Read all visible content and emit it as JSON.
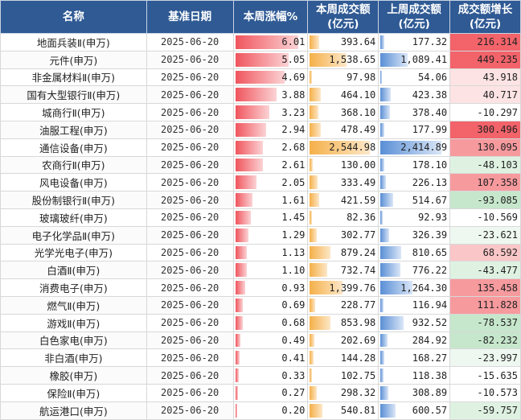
{
  "headers": [
    "名称",
    "基准日期",
    "本周涨幅%",
    "本周成交额\n(亿元)",
    "上周成交额\n(亿元)",
    "成交额增长\n(亿元)"
  ],
  "max": {
    "change": 6.01,
    "this_week": 2544.98,
    "last_week": 2414.89
  },
  "rows": [
    {
      "name": "地面兵装Ⅱ(申万)",
      "date": "2025-06-20",
      "change": "6.01",
      "this_week": "393.64",
      "last_week": "177.32",
      "growth": "216.314"
    },
    {
      "name": "元件(申万)",
      "date": "2025-06-20",
      "change": "5.05",
      "this_week": "1,538.65",
      "last_week": "1,089.41",
      "growth": "449.235"
    },
    {
      "name": "非金属材料Ⅱ(申万)",
      "date": "2025-06-20",
      "change": "4.69",
      "this_week": "97.98",
      "last_week": "54.06",
      "growth": "43.918"
    },
    {
      "name": "国有大型银行Ⅱ(申万)",
      "date": "2025-06-20",
      "change": "3.88",
      "this_week": "464.10",
      "last_week": "423.38",
      "growth": "40.717"
    },
    {
      "name": "城商行Ⅱ(申万)",
      "date": "2025-06-20",
      "change": "3.23",
      "this_week": "368.10",
      "last_week": "378.40",
      "growth": "-10.297"
    },
    {
      "name": "油服工程(申万)",
      "date": "2025-06-20",
      "change": "2.94",
      "this_week": "478.49",
      "last_week": "177.99",
      "growth": "300.496"
    },
    {
      "name": "通信设备(申万)",
      "date": "2025-06-20",
      "change": "2.68",
      "this_week": "2,544.98",
      "last_week": "2,414.89",
      "growth": "130.095"
    },
    {
      "name": "农商行Ⅱ(申万)",
      "date": "2025-06-20",
      "change": "2.61",
      "this_week": "130.00",
      "last_week": "178.10",
      "growth": "-48.103"
    },
    {
      "name": "风电设备(申万)",
      "date": "2025-06-20",
      "change": "2.05",
      "this_week": "333.49",
      "last_week": "226.13",
      "growth": "107.358"
    },
    {
      "name": "股份制银行Ⅱ(申万)",
      "date": "2025-06-20",
      "change": "1.61",
      "this_week": "421.59",
      "last_week": "514.67",
      "growth": "-93.085"
    },
    {
      "name": "玻璃玻纤(申万)",
      "date": "2025-06-20",
      "change": "1.45",
      "this_week": "82.36",
      "last_week": "92.93",
      "growth": "-10.569"
    },
    {
      "name": "电子化学品Ⅱ(申万)",
      "date": "2025-06-20",
      "change": "1.29",
      "this_week": "302.77",
      "last_week": "326.39",
      "growth": "-23.621"
    },
    {
      "name": "光学光电子(申万)",
      "date": "2025-06-20",
      "change": "1.13",
      "this_week": "879.24",
      "last_week": "810.65",
      "growth": "68.592"
    },
    {
      "name": "白酒Ⅱ(申万)",
      "date": "2025-06-20",
      "change": "1.10",
      "this_week": "732.74",
      "last_week": "776.22",
      "growth": "-43.477"
    },
    {
      "name": "消费电子(申万)",
      "date": "2025-06-20",
      "change": "0.93",
      "this_week": "1,399.76",
      "last_week": "1,264.30",
      "growth": "135.458"
    },
    {
      "name": "燃气Ⅱ(申万)",
      "date": "2025-06-20",
      "change": "0.69",
      "this_week": "228.77",
      "last_week": "116.94",
      "growth": "111.828"
    },
    {
      "name": "游戏Ⅱ(申万)",
      "date": "2025-06-20",
      "change": "0.68",
      "this_week": "853.98",
      "last_week": "932.52",
      "growth": "-78.537"
    },
    {
      "name": "白色家电(申万)",
      "date": "2025-06-20",
      "change": "0.49",
      "this_week": "202.69",
      "last_week": "284.92",
      "growth": "-82.232"
    },
    {
      "name": "非白酒(申万)",
      "date": "2025-06-20",
      "change": "0.41",
      "this_week": "144.28",
      "last_week": "168.27",
      "growth": "-23.997"
    },
    {
      "name": "橡胶(申万)",
      "date": "2025-06-20",
      "change": "0.33",
      "this_week": "102.75",
      "last_week": "118.38",
      "growth": "-15.635"
    },
    {
      "name": "保险Ⅱ(申万)",
      "date": "2025-06-20",
      "change": "0.27",
      "this_week": "298.32",
      "last_week": "308.89",
      "growth": "-10.573"
    },
    {
      "name": "航运港口(申万)",
      "date": "2025-06-20",
      "change": "0.20",
      "this_week": "540.81",
      "last_week": "600.57",
      "growth": "-59.757"
    }
  ]
}
